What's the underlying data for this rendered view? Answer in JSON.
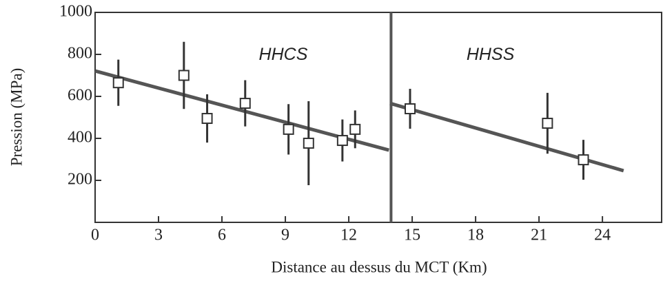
{
  "chart_data": {
    "type": "scatter",
    "xlabel": "Distance au dessus du MCT (Km)",
    "ylabel": "Pression (MPa)",
    "x": [
      1.1,
      4.2,
      5.3,
      7.1,
      9.15,
      10.1,
      11.7,
      12.3,
      14.9,
      21.4,
      23.1
    ],
    "values": [
      665,
      700,
      495,
      567,
      443,
      377,
      390,
      443,
      541,
      472,
      298
    ],
    "errors": [
      110,
      160,
      115,
      110,
      120,
      200,
      100,
      90,
      95,
      145,
      95
    ],
    "fit_lines": [
      {
        "x": [
          0,
          13.9
        ],
        "y": [
          721,
          344
        ]
      },
      {
        "x": [
          13.95,
          25
        ],
        "y": [
          567,
          246
        ]
      }
    ],
    "vlines": [
      14
    ],
    "annotations": [
      {
        "text": "HHCS",
        "x": 8.9,
        "y": 795
      },
      {
        "text": "HHSS",
        "x": 18.7,
        "y": 795
      }
    ],
    "xlim": [
      0,
      26.8
    ],
    "ylim": [
      0,
      1000
    ],
    "xticks": [
      0,
      3,
      6,
      9,
      12,
      15,
      18,
      21,
      24
    ],
    "yticks": [
      200,
      400,
      600,
      800,
      1000
    ],
    "color": "#333333"
  }
}
